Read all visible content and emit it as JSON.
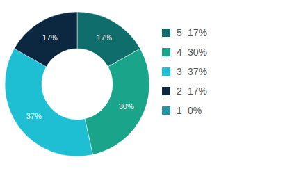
{
  "chart_data": {
    "type": "donut",
    "categories": [
      "5",
      "4",
      "3",
      "2",
      "1"
    ],
    "values": [
      17,
      30,
      37,
      17,
      0
    ],
    "value_labels": [
      "17%",
      "30%",
      "37%",
      "17%",
      "0%"
    ],
    "colors": [
      "#0f6e6c",
      "#1aa58a",
      "#1fbfd3",
      "#0b2840",
      "#2b8fa6"
    ],
    "data_labels": true,
    "legend": "right"
  }
}
